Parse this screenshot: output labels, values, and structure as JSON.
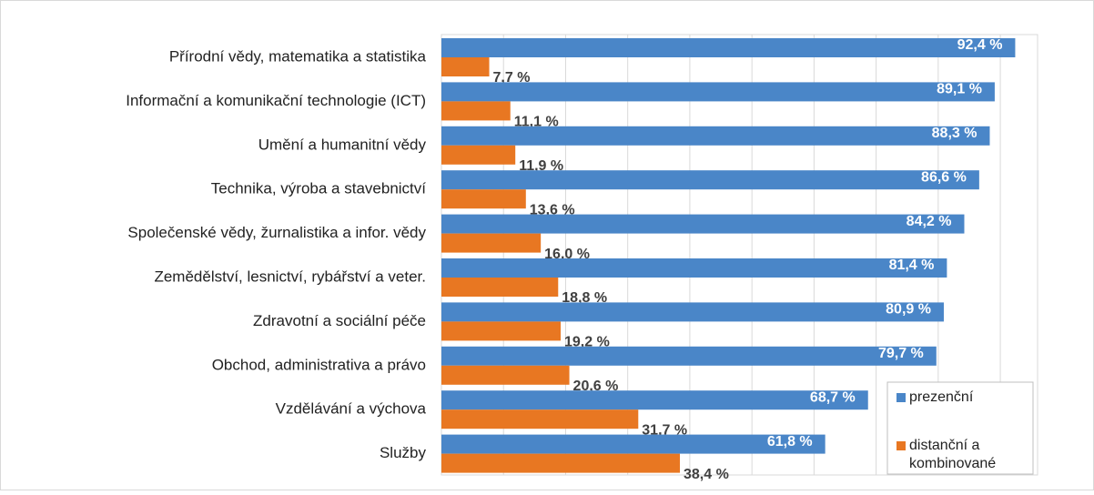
{
  "chart_data": {
    "type": "barh",
    "categories": [
      "Přírodní vědy, matematika a statistika",
      "Informační a komunikační technologie (ICT)",
      "Umění a humanitní vědy",
      "Technika, výroba a stavebnictví",
      "Společenské vědy, žurnalistika a infor. vědy",
      "Zemědělství, lesnictví, rybářství a veter.",
      "Zdravotní a sociální péče",
      "Obchod, administrativa a právo",
      "Vzdělávání a výchova",
      "Služby"
    ],
    "series": [
      {
        "name": "prezenční",
        "color": "#4a86c8",
        "values": [
          92.4,
          89.1,
          88.3,
          86.6,
          84.2,
          81.4,
          80.9,
          79.7,
          68.7,
          61.8
        ],
        "value_labels": [
          "92,4 %",
          "89,1 %",
          "88,3 %",
          "86,6 %",
          "84,2 %",
          "81,4 %",
          "80,9 %",
          "79,7 %",
          "68,7 %",
          "61,8 %"
        ]
      },
      {
        "name": "distanční a kombinované",
        "color": "#e87722",
        "values": [
          7.7,
          11.1,
          11.9,
          13.6,
          16.0,
          18.8,
          19.2,
          20.6,
          31.7,
          38.4
        ],
        "value_labels": [
          "7,7 %",
          "11,1 %",
          "11,9 %",
          "13,6 %",
          "16,0 %",
          "18,8 %",
          "19,2 %",
          "20,6 %",
          "31,7 %",
          "38,4 %"
        ]
      }
    ],
    "xlim": [
      0,
      96
    ],
    "xticks": [
      0,
      10,
      20,
      30,
      40,
      50,
      60,
      70,
      80,
      90
    ],
    "grid": true,
    "legend": "lower right"
  }
}
